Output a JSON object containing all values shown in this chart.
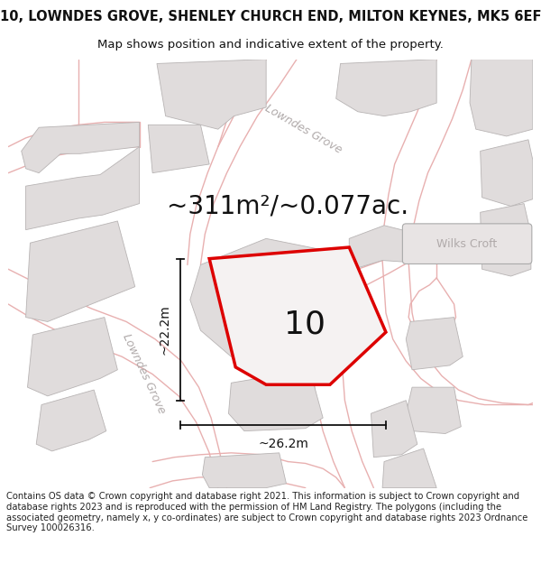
{
  "title_line1": "10, LOWNDES GROVE, SHENLEY CHURCH END, MILTON KEYNES, MK5 6EF",
  "title_line2": "Map shows position and indicative extent of the property.",
  "area_text": "~311m²/~0.077ac.",
  "property_number": "10",
  "dim_horizontal": "~26.2m",
  "dim_vertical": "~22.2m",
  "street_name_diagonal_top": "Lowndes Grove",
  "street_name_diagonal_left": "Lowndes Grove",
  "street_label_right": "Wilks Croft",
  "footer_text": "Contains OS data © Crown copyright and database right 2021. This information is subject to Crown copyright and database rights 2023 and is reproduced with the permission of HM Land Registry. The polygons (including the associated geometry, namely x, y co-ordinates) are subject to Crown copyright and database rights 2023 Ordnance Survey 100026316.",
  "map_bg": "#f5f0f0",
  "building_face": "#e0dcdc",
  "building_edge": "#b8b4b4",
  "road_line_color": "#e8b0b0",
  "property_outline_color": "#dd0000",
  "property_fill": "#f5f2f2",
  "dim_color": "#111111",
  "street_label_gray": "#b0aaaa",
  "wilks_box_face": "#e8e4e4",
  "wilks_box_edge": "#aaaaaa",
  "title_fontsize": 10.5,
  "subtitle_fontsize": 9.5,
  "footer_fontsize": 7.2,
  "area_fontsize": 20,
  "property_num_fontsize": 26,
  "dim_fontsize": 10,
  "street_label_fontsize": 9,
  "wilks_fontsize": 9
}
